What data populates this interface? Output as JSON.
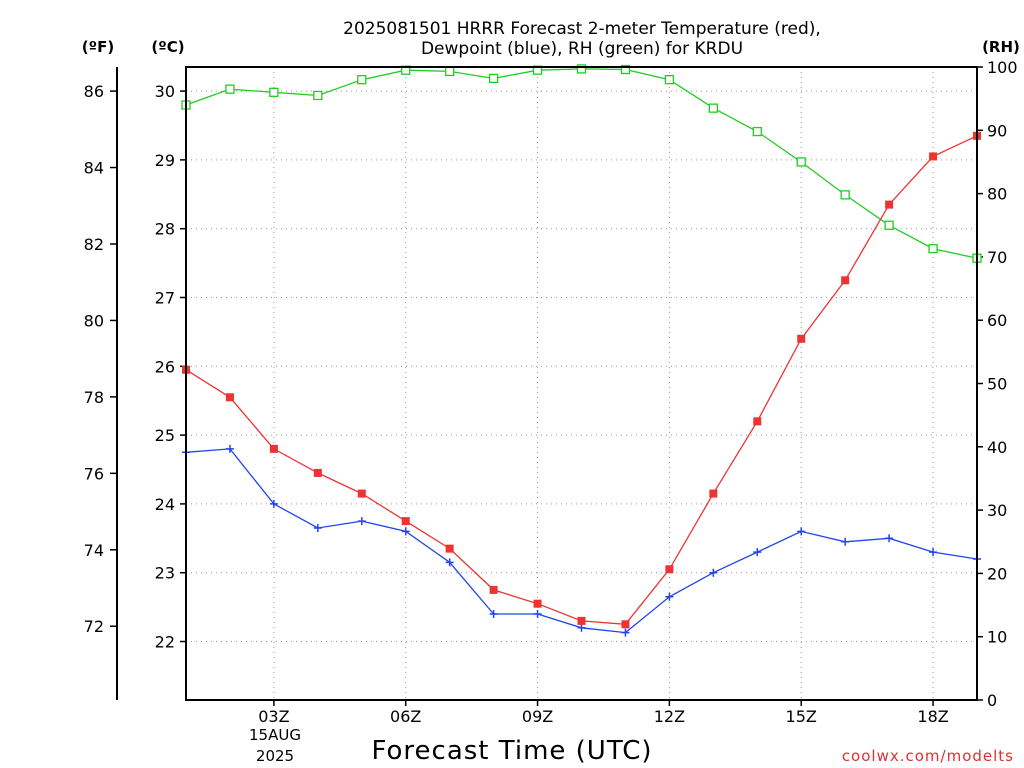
{
  "chart_data": {
    "type": "line",
    "title_line1": "2025081501 HRRR Forecast 2-meter Temperature (red),",
    "title_line2": "Dewpoint (blue), RH (green) for KRDU",
    "xlabel": "Forecast Time (UTC)",
    "credit": "coolwx.com/modelts",
    "unit_f": "(ºF)",
    "unit_c": "(ºC)",
    "unit_rh": "(RH)",
    "date_line1": "15AUG",
    "date_line2": "2025",
    "x_hours": [
      1,
      2,
      3,
      4,
      5,
      6,
      7,
      8,
      9,
      10,
      11,
      12,
      13,
      14,
      15,
      16,
      17,
      18,
      19
    ],
    "x_ticks": [
      {
        "hour": 3,
        "label": "03Z"
      },
      {
        "hour": 6,
        "label": "06Z"
      },
      {
        "hour": 9,
        "label": "09Z"
      },
      {
        "hour": 12,
        "label": "12Z"
      },
      {
        "hour": 15,
        "label": "15Z"
      },
      {
        "hour": 18,
        "label": "18Z"
      }
    ],
    "x_range": [
      1,
      19
    ],
    "celsius_ticks": [
      22,
      23,
      24,
      25,
      26,
      27,
      28,
      29,
      30
    ],
    "celsius_range": [
      21.15,
      30.35
    ],
    "fahrenheit_ticks": [
      72,
      74,
      76,
      78,
      80,
      82,
      84,
      86
    ],
    "rh_ticks": [
      0,
      10,
      20,
      30,
      40,
      50,
      60,
      70,
      80,
      90,
      100
    ],
    "rh_range": [
      0,
      100
    ],
    "grid": true,
    "series": [
      {
        "name": "Temperature",
        "unit": "C",
        "color": "#ee3333",
        "marker": "filled-square",
        "values": [
          25.95,
          25.55,
          24.8,
          24.45,
          24.15,
          23.75,
          23.35,
          22.75,
          22.55,
          22.3,
          22.25,
          23.05,
          24.15,
          25.2,
          26.4,
          27.25,
          28.35,
          29.05,
          29.35
        ]
      },
      {
        "name": "Dewpoint",
        "unit": "C",
        "color": "#2244ee",
        "marker": "plus",
        "values": [
          24.75,
          24.8,
          24.0,
          23.65,
          23.75,
          23.6,
          23.15,
          22.4,
          22.4,
          22.2,
          22.13,
          22.65,
          23.0,
          23.3,
          23.6,
          23.45,
          23.5,
          23.3,
          23.2
        ]
      },
      {
        "name": "RH",
        "unit": "%",
        "color": "#22cc22",
        "marker": "open-square",
        "values": [
          94,
          96.5,
          96,
          95.5,
          98,
          99.5,
          99.3,
          98.2,
          99.5,
          99.7,
          99.6,
          98,
          93.5,
          89.8,
          85,
          79.8,
          75,
          71.3,
          69.8
        ]
      }
    ]
  }
}
